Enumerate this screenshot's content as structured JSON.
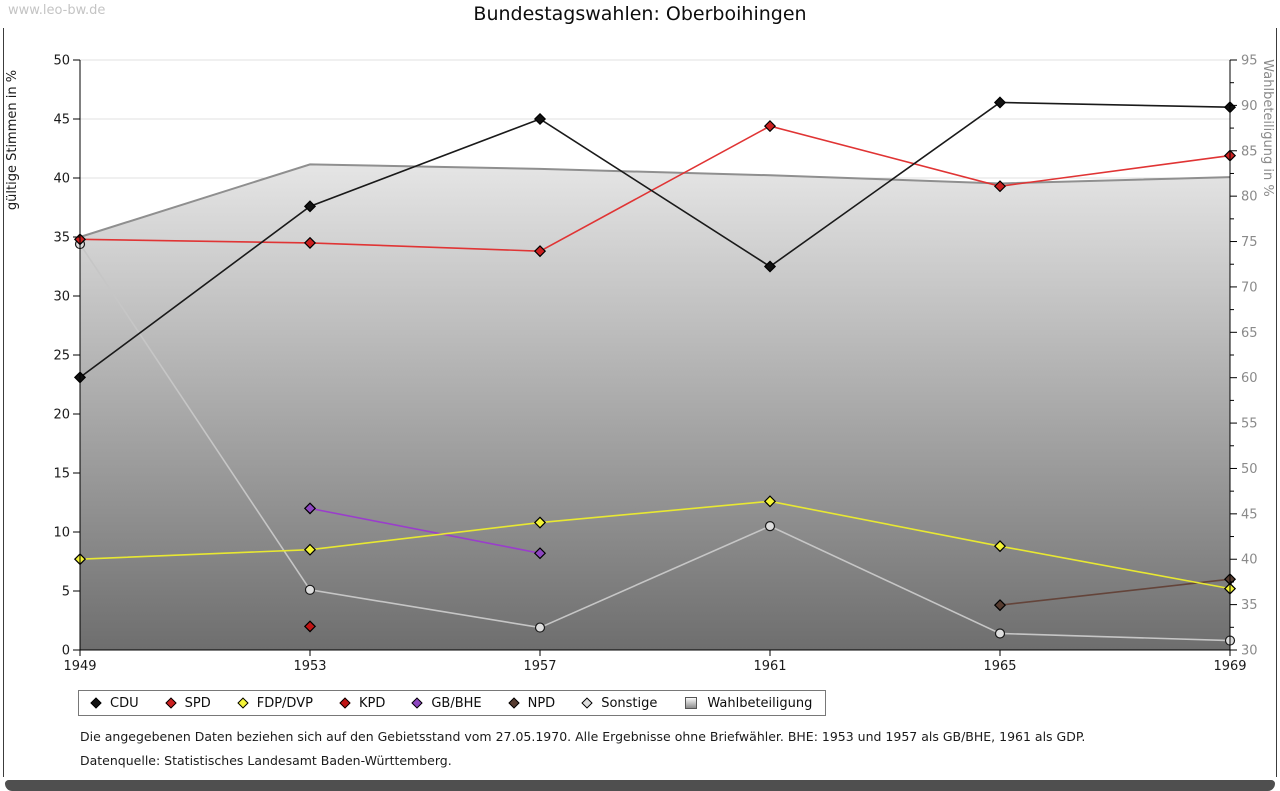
{
  "watermark": "www.leo-bw.de",
  "title": "Bundestagswahlen: Oberboihingen",
  "footnotes": {
    "line1": "Die angegebenen Daten beziehen sich auf den Gebietsstand vom 27.05.1970. Alle Ergebnisse ohne Briefwähler. BHE: 1953 und 1957 als GB/BHE, 1961 als GDP.",
    "line2": "Datenquelle: Statistisches Landesamt Baden-Württemberg."
  },
  "chart_data": {
    "type": "line",
    "x": [
      1949,
      1953,
      1957,
      1961,
      1965,
      1969
    ],
    "left_axis": {
      "label": "gültige Stimmen in %",
      "min": 0,
      "max": 50,
      "step": 5
    },
    "right_axis": {
      "label": "Wahlbeteiligung in %",
      "min": 30,
      "max": 95,
      "step": 5
    },
    "grid": true,
    "legend_position": "bottom",
    "series": [
      {
        "name": "CDU",
        "axis": "left",
        "marker": "diamond",
        "color": "#1a1a1a",
        "marker_color": "#111111",
        "values": [
          23.1,
          37.6,
          45.0,
          32.5,
          46.4,
          46.0
        ]
      },
      {
        "name": "SPD",
        "axis": "left",
        "marker": "diamond",
        "color": "#e03434",
        "marker_color": "#cc2020",
        "values": [
          34.8,
          34.5,
          33.8,
          44.4,
          39.3,
          41.9
        ]
      },
      {
        "name": "FDP/DVP",
        "axis": "left",
        "marker": "diamond",
        "color": "#e8e832",
        "marker_color": "#f4f437",
        "values": [
          7.7,
          8.5,
          10.8,
          12.6,
          8.8,
          5.2
        ]
      },
      {
        "name": "KPD",
        "axis": "left",
        "marker": "diamond",
        "color": "#c01414",
        "marker_color": "#c01414",
        "values": [
          null,
          2.0,
          null,
          null,
          null,
          null
        ]
      },
      {
        "name": "GB/BHE",
        "axis": "left",
        "marker": "diamond",
        "color": "#9a3dcc",
        "marker_color": "#8d46c0",
        "values": [
          null,
          12.0,
          8.2,
          null,
          null,
          null
        ]
      },
      {
        "name": "NPD",
        "axis": "left",
        "marker": "diamond",
        "color": "#64443a",
        "marker_color": "#573c30",
        "values": [
          null,
          null,
          null,
          null,
          3.8,
          6.0
        ]
      },
      {
        "name": "Sonstige",
        "axis": "left",
        "marker": "circle",
        "color": "#c6c6c6",
        "marker_color": "#dedede",
        "values": [
          34.4,
          5.1,
          1.9,
          10.5,
          1.4,
          0.8
        ]
      },
      {
        "name": "Wahlbeteiligung",
        "axis": "right",
        "marker": "square",
        "color": "#8f8f8f",
        "area": true,
        "area_top_color": "#ffffff",
        "area_bottom_color": "#6e6e6e",
        "values": [
          75.5,
          83.5,
          83.0,
          82.3,
          81.4,
          82.1
        ]
      }
    ]
  }
}
